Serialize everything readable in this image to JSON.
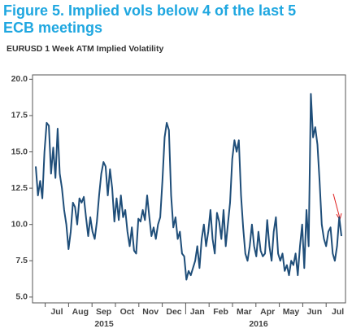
{
  "chart_data": {
    "type": "line",
    "title_lines": [
      "Figure 5. Implied vols below 4 of the last 5",
      "ECB meetings"
    ],
    "subtitle": "EURUSD 1 Week ATM Implied Volatility",
    "month_labels": [
      "Jul",
      "Aug",
      "Sep",
      "Oct",
      "Nov",
      "Dec",
      "Jan",
      "Feb",
      "Mar",
      "Apr",
      "May",
      "Jun",
      "Jul"
    ],
    "year_labels": [
      "2015",
      "2016"
    ],
    "ylim": [
      4.6,
      20.3
    ],
    "yticks": [
      {
        "value": 5,
        "label": "5.0"
      },
      {
        "value": 7.5,
        "label": "7.5"
      },
      {
        "value": 10,
        "label": "10.0"
      },
      {
        "value": 12.5,
        "label": "12.5"
      },
      {
        "value": 15,
        "label": "15.0"
      },
      {
        "value": 17.5,
        "label": "17.5"
      },
      {
        "value": 20,
        "label": "20.0"
      }
    ],
    "series": [
      {
        "color": "#1f4e79",
        "values": [
          14.0,
          12.0,
          13.0,
          11.8,
          15.0,
          17.0,
          16.8,
          13.5,
          15.3,
          13.2,
          16.6,
          13.5,
          12.5,
          11.0,
          10.0,
          8.3,
          9.5,
          11.5,
          11.2,
          10.0,
          11.8,
          11.5,
          11.9,
          10.5,
          9.2,
          10.5,
          9.5,
          9.0,
          10.2,
          12.0,
          13.5,
          14.3,
          14.0,
          12.0,
          13.8,
          12.5,
          10.2,
          11.8,
          10.3,
          12.0,
          10.5,
          11.0,
          9.5,
          8.5,
          9.8,
          8.2,
          8.0,
          10.4,
          10.2,
          11.0,
          10.3,
          12.0,
          10.5,
          9.2,
          9.8,
          9.0,
          10.0,
          10.5,
          13.0,
          16.0,
          17.0,
          16.5,
          12.0,
          9.8,
          10.5,
          9.0,
          9.5,
          8.0,
          7.8,
          6.2,
          6.8,
          6.5,
          7.0,
          7.5,
          8.5,
          7.0,
          9.0,
          10.0,
          8.5,
          9.5,
          11.0,
          9.0,
          8.0,
          10.8,
          10.2,
          9.0,
          11.0,
          8.5,
          10.0,
          11.5,
          14.5,
          15.8,
          15.0,
          15.8,
          12.0,
          9.8,
          8.0,
          7.5,
          8.5,
          10.0,
          8.5,
          7.8,
          9.5,
          8.2,
          7.8,
          8.0,
          10.3,
          8.5,
          7.5,
          9.5,
          10.5,
          8.0,
          7.5,
          8.0,
          6.8,
          7.2,
          6.5,
          7.5,
          7.2,
          8.0,
          6.5,
          8.5,
          10.0,
          7.0,
          11.0,
          8.5,
          19.0,
          16.0,
          16.7,
          15.5,
          13.0,
          10.0,
          9.0,
          8.5,
          9.5,
          9.8,
          8.0,
          7.5,
          8.5,
          10.5,
          9.2
        ]
      }
    ]
  }
}
